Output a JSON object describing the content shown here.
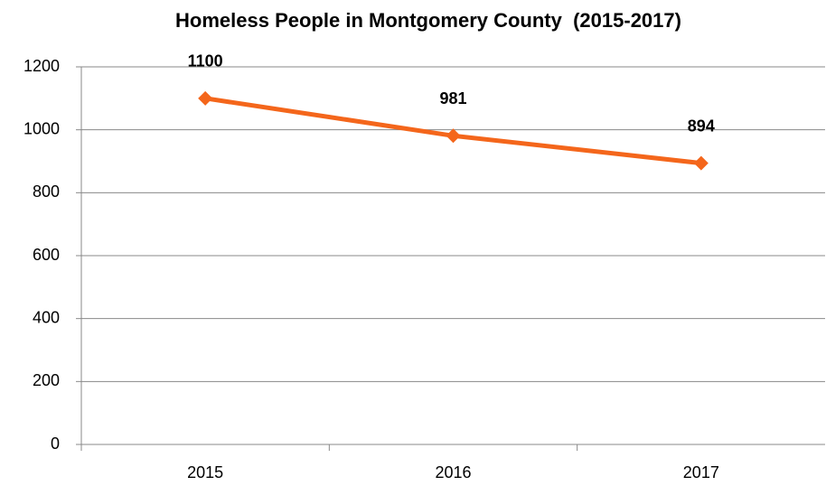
{
  "chart_data": {
    "type": "line",
    "title": "Homeless People in Montgomery County  (2015-2017)",
    "categories": [
      "2015",
      "2016",
      "2017"
    ],
    "series": [
      {
        "name": "Homeless People",
        "color": "#f4661b",
        "values": [
          1100,
          981,
          894
        ]
      }
    ],
    "ylim": [
      0,
      1200
    ],
    "yticks": [
      0,
      200,
      400,
      600,
      800,
      1000,
      1200
    ],
    "grid": true
  }
}
